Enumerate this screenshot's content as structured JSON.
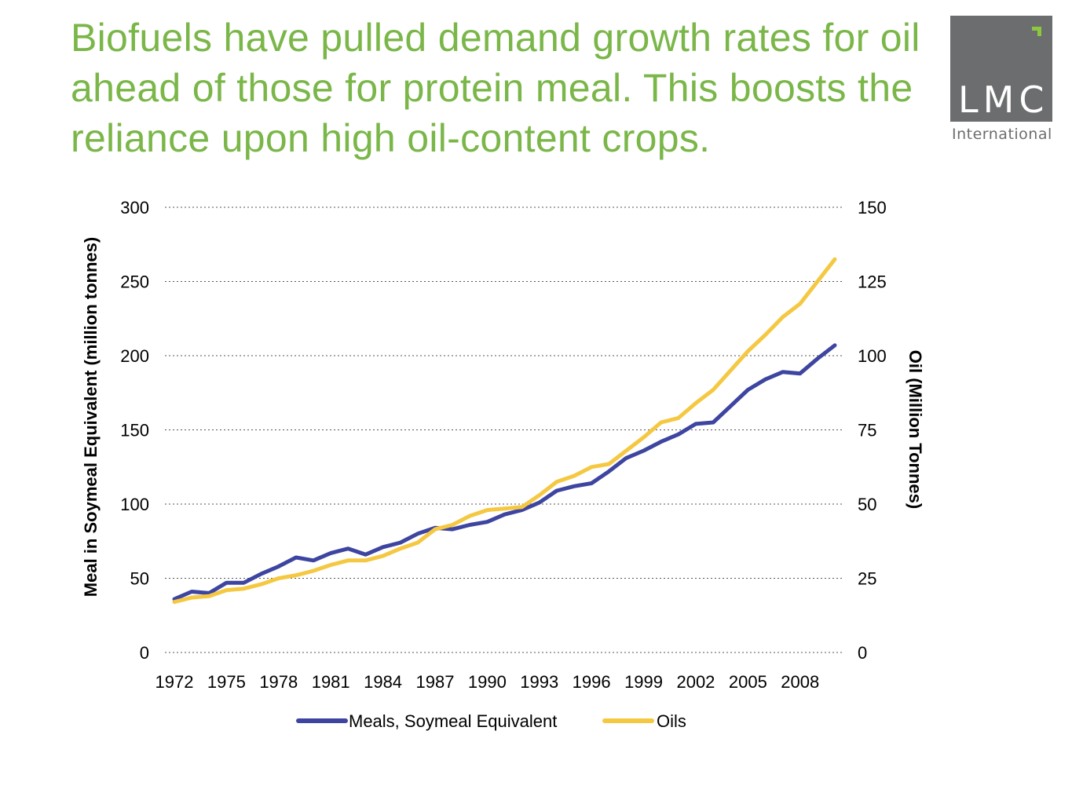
{
  "headline": "Biofuels have pulled demand growth rates for oil ahead of those for protein meal. This boosts the reliance upon high oil-content crops.",
  "logo": {
    "main": "LMC",
    "sub": "International"
  },
  "colors": {
    "headline": "#7ab648",
    "meals": "#3d45a0",
    "oils": "#f5c842",
    "logo_box": "#6b6d6e",
    "logo_mark": "#8dc63f"
  },
  "chart_data": {
    "type": "line",
    "title": "",
    "x": [
      1972,
      1973,
      1974,
      1975,
      1976,
      1977,
      1978,
      1979,
      1980,
      1981,
      1982,
      1983,
      1984,
      1985,
      1986,
      1987,
      1988,
      1989,
      1990,
      1991,
      1992,
      1993,
      1994,
      1995,
      1996,
      1997,
      1998,
      1999,
      2000,
      2001,
      2002,
      2003,
      2004,
      2005,
      2006,
      2007,
      2008,
      2009,
      2010
    ],
    "xticks": [
      "1972",
      "1975",
      "1978",
      "1981",
      "1984",
      "1987",
      "1990",
      "1993",
      "1996",
      "1999",
      "2002",
      "2005",
      "2008"
    ],
    "ylabel": "Meal in Soymeal Equivalent (million tonnes)",
    "ylabel_right": "Oil (Million Tonnes)",
    "ylim": [
      0,
      300
    ],
    "ylim_right": [
      0,
      150
    ],
    "yticks": [
      "0",
      "50",
      "100",
      "150",
      "200",
      "250",
      "300"
    ],
    "yticks_right": [
      "0",
      "25",
      "50",
      "75",
      "100",
      "125",
      "150"
    ],
    "grid": "horizontal dotted",
    "legend_position": "bottom",
    "series": [
      {
        "name": "Meals, Soymeal Equivalent",
        "axis": "left",
        "color": "#3d45a0",
        "values": [
          36,
          41,
          40,
          47,
          47,
          53,
          58,
          64,
          62,
          67,
          70,
          66,
          71,
          74,
          80,
          84,
          83,
          86,
          88,
          93,
          96,
          101,
          109,
          112,
          114,
          122,
          131,
          136,
          142,
          147,
          154,
          155,
          166,
          177,
          184,
          189,
          188,
          198,
          207
        ]
      },
      {
        "name": "Oils",
        "axis": "right",
        "color": "#f5c842",
        "values": [
          17,
          18.5,
          19,
          21,
          21.5,
          23,
          25,
          26,
          27.5,
          29.5,
          31,
          31,
          32.5,
          35,
          37,
          41.5,
          43,
          46,
          48,
          48.5,
          49,
          53,
          57.5,
          59.5,
          62.5,
          63.5,
          68,
          72.5,
          77.5,
          79,
          84,
          88.5,
          95,
          101.5,
          107,
          113,
          117.5,
          125,
          132.5
        ]
      }
    ]
  }
}
